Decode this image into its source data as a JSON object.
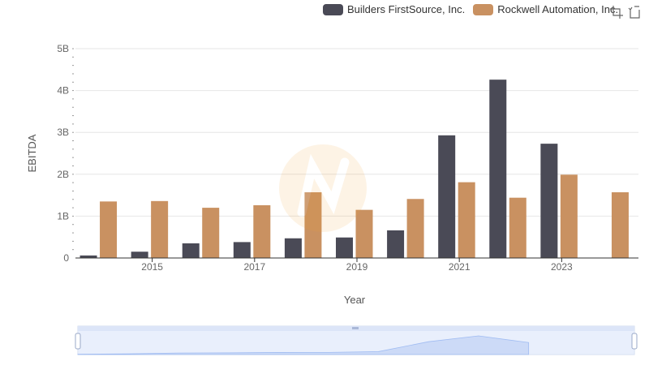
{
  "chart_data": {
    "type": "bar",
    "ylabel": "EBITDA",
    "xlabel": "Year",
    "ylim": [
      0,
      5000000000
    ],
    "y_ticks": [
      "0",
      "1B",
      "2B",
      "3B",
      "4B",
      "5B"
    ],
    "x": [
      2014,
      2015,
      2016,
      2017,
      2018,
      2019,
      2020,
      2021,
      2022,
      2023,
      2024
    ],
    "x_tick_labels": [
      "2015",
      "2017",
      "2019",
      "2021",
      "2023"
    ],
    "series": [
      {
        "name": "Builders FirstSource, Inc.",
        "color": "#4a4a56",
        "values": [
          60000000,
          150000000,
          350000000,
          380000000,
          470000000,
          490000000,
          660000000,
          2930000000,
          4260000000,
          2730000000,
          null
        ]
      },
      {
        "name": "Rockwell Automation, Inc.",
        "color": "#c99161",
        "values": [
          1350000000,
          1360000000,
          1200000000,
          1260000000,
          1570000000,
          1150000000,
          1410000000,
          1810000000,
          1440000000,
          1990000000,
          1570000000
        ]
      }
    ],
    "legend_position": "top-right",
    "grid": true,
    "datazoom": {
      "start": 0,
      "end": 100,
      "series": "Builders FirstSource, Inc."
    }
  },
  "toolbox": {
    "zoom_icon": "zoom-select-icon",
    "restore_icon": "restore-icon"
  }
}
